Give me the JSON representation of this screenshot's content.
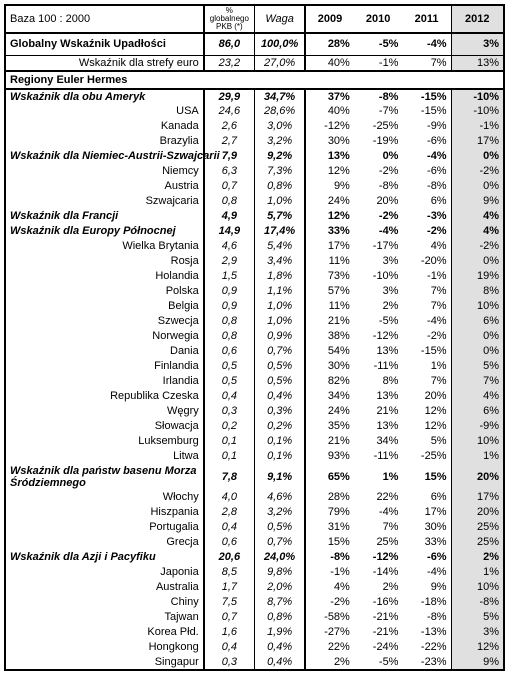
{
  "header": {
    "base": "Baza 100 : 2000",
    "pkb_top": "%",
    "pkb_mid": "globalnego",
    "pkb_bot": "PKB (*)",
    "waga": "Waga",
    "y2009": "2009",
    "y2010": "2010",
    "y2011": "2011",
    "y2012": "2012"
  },
  "global": {
    "label": "Globalny Wskaźnik Upadłości",
    "pkb": "86,0",
    "waga": "100,0%",
    "y2009": "28%",
    "y2010": "-5%",
    "y2011": "-4%",
    "y2012": "3%"
  },
  "euro": {
    "label": "Wskaźnik dla strefy euro",
    "pkb": "23,2",
    "waga": "27,0%",
    "y2009": "40%",
    "y2010": "-1%",
    "y2011": "7%",
    "y2012": "13%"
  },
  "regions_title": "Regiony Euler Hermes",
  "groups": [
    {
      "label": "Wskaźnik dla obu Ameryk",
      "pkb": "29,9",
      "waga": "34,7%",
      "y2009": "37%",
      "y2010": "-8%",
      "y2011": "-15%",
      "y2012": "-10%",
      "rows": [
        {
          "label": "USA",
          "pkb": "24,6",
          "waga": "28,6%",
          "y2009": "40%",
          "y2010": "-7%",
          "y2011": "-15%",
          "y2012": "-10%"
        },
        {
          "label": "Kanada",
          "pkb": "2,6",
          "waga": "3,0%",
          "y2009": "-12%",
          "y2010": "-25%",
          "y2011": "-9%",
          "y2012": "-1%"
        },
        {
          "label": "Brazylia",
          "pkb": "2,7",
          "waga": "3,2%",
          "y2009": "30%",
          "y2010": "-19%",
          "y2011": "-6%",
          "y2012": "17%"
        }
      ]
    },
    {
      "label": "Wskaźnik dla Niemiec-Austrii-Szwajcarii",
      "pkb": "7,9",
      "waga": "9,2%",
      "y2009": "13%",
      "y2010": "0%",
      "y2011": "-4%",
      "y2012": "0%",
      "rows": [
        {
          "label": "Niemcy",
          "pkb": "6,3",
          "waga": "7,3%",
          "y2009": "12%",
          "y2010": "-2%",
          "y2011": "-6%",
          "y2012": "-2%"
        },
        {
          "label": "Austria",
          "pkb": "0,7",
          "waga": "0,8%",
          "y2009": "9%",
          "y2010": "-8%",
          "y2011": "-8%",
          "y2012": "0%"
        },
        {
          "label": "Szwajcaria",
          "pkb": "0,8",
          "waga": "1,0%",
          "y2009": "24%",
          "y2010": "20%",
          "y2011": "6%",
          "y2012": "9%"
        }
      ]
    },
    {
      "label": "Wskaźnik dla Francji",
      "pkb": "4,9",
      "waga": "5,7%",
      "y2009": "12%",
      "y2010": "-2%",
      "y2011": "-3%",
      "y2012": "4%",
      "rows": []
    },
    {
      "label": "Wskaźnik dla Europy Północnej",
      "pkb": "14,9",
      "waga": "17,4%",
      "y2009": "33%",
      "y2010": "-4%",
      "y2011": "-2%",
      "y2012": "4%",
      "rows": [
        {
          "label": "Wielka Brytania",
          "pkb": "4,6",
          "waga": "5,4%",
          "y2009": "17%",
          "y2010": "-17%",
          "y2011": "4%",
          "y2012": "-2%"
        },
        {
          "label": "Rosja",
          "pkb": "2,9",
          "waga": "3,4%",
          "y2009": "11%",
          "y2010": "3%",
          "y2011": "-20%",
          "y2012": "0%"
        },
        {
          "label": "Holandia",
          "pkb": "1,5",
          "waga": "1,8%",
          "y2009": "73%",
          "y2010": "-10%",
          "y2011": "-1%",
          "y2012": "19%"
        },
        {
          "label": "Polska",
          "pkb": "0,9",
          "waga": "1,1%",
          "y2009": "57%",
          "y2010": "3%",
          "y2011": "7%",
          "y2012": "8%"
        },
        {
          "label": "Belgia",
          "pkb": "0,9",
          "waga": "1,0%",
          "y2009": "11%",
          "y2010": "2%",
          "y2011": "7%",
          "y2012": "10%"
        },
        {
          "label": "Szwecja",
          "pkb": "0,8",
          "waga": "1,0%",
          "y2009": "21%",
          "y2010": "-5%",
          "y2011": "-4%",
          "y2012": "6%"
        },
        {
          "label": "Norwegia",
          "pkb": "0,8",
          "waga": "0,9%",
          "y2009": "38%",
          "y2010": "-12%",
          "y2011": "-2%",
          "y2012": "0%"
        },
        {
          "label": "Dania",
          "pkb": "0,6",
          "waga": "0,7%",
          "y2009": "54%",
          "y2010": "13%",
          "y2011": "-15%",
          "y2012": "0%"
        },
        {
          "label": "Finlandia",
          "pkb": "0,5",
          "waga": "0,5%",
          "y2009": "30%",
          "y2010": "-11%",
          "y2011": "1%",
          "y2012": "5%"
        },
        {
          "label": "Irlandia",
          "pkb": "0,5",
          "waga": "0,5%",
          "y2009": "82%",
          "y2010": "8%",
          "y2011": "7%",
          "y2012": "7%"
        },
        {
          "label": "Republika Czeska",
          "pkb": "0,4",
          "waga": "0,4%",
          "y2009": "34%",
          "y2010": "13%",
          "y2011": "20%",
          "y2012": "4%"
        },
        {
          "label": "Węgry",
          "pkb": "0,3",
          "waga": "0,3%",
          "y2009": "24%",
          "y2010": "21%",
          "y2011": "12%",
          "y2012": "6%"
        },
        {
          "label": "Słowacja",
          "pkb": "0,2",
          "waga": "0,2%",
          "y2009": "35%",
          "y2010": "13%",
          "y2011": "12%",
          "y2012": "-9%"
        },
        {
          "label": "Luksemburg",
          "pkb": "0,1",
          "waga": "0,1%",
          "y2009": "21%",
          "y2010": "34%",
          "y2011": "5%",
          "y2012": "10%"
        },
        {
          "label": "Litwa",
          "pkb": "0,1",
          "waga": "0,1%",
          "y2009": "93%",
          "y2010": "-11%",
          "y2011": "-25%",
          "y2012": "1%"
        }
      ]
    },
    {
      "label": "Wskaźnik dla państw basenu Morza Śródziemnego",
      "pkb": "7,8",
      "waga": "9,1%",
      "y2009": "65%",
      "y2010": "1%",
      "y2011": "15%",
      "y2012": "20%",
      "tall": true,
      "rows": [
        {
          "label": "Włochy",
          "pkb": "4,0",
          "waga": "4,6%",
          "y2009": "28%",
          "y2010": "22%",
          "y2011": "6%",
          "y2012": "17%"
        },
        {
          "label": "Hiszpania",
          "pkb": "2,8",
          "waga": "3,2%",
          "y2009": "79%",
          "y2010": "-4%",
          "y2011": "17%",
          "y2012": "20%"
        },
        {
          "label": "Portugalia",
          "pkb": "0,4",
          "waga": "0,5%",
          "y2009": "31%",
          "y2010": "7%",
          "y2011": "30%",
          "y2012": "25%"
        },
        {
          "label": "Grecja",
          "pkb": "0,6",
          "waga": "0,7%",
          "y2009": "15%",
          "y2010": "25%",
          "y2011": "33%",
          "y2012": "25%"
        }
      ]
    },
    {
      "label": "Wskaźnik dla Azji i Pacyfiku",
      "pkb": "20,6",
      "waga": "24,0%",
      "y2009": "-8%",
      "y2010": "-12%",
      "y2011": "-6%",
      "y2012": "2%",
      "rows": [
        {
          "label": "Japonia",
          "pkb": "8,5",
          "waga": "9,8%",
          "y2009": "-1%",
          "y2010": "-14%",
          "y2011": "-4%",
          "y2012": "1%"
        },
        {
          "label": "Australia",
          "pkb": "1,7",
          "waga": "2,0%",
          "y2009": "4%",
          "y2010": "2%",
          "y2011": "9%",
          "y2012": "10%"
        },
        {
          "label": "Chiny",
          "pkb": "7,5",
          "waga": "8,7%",
          "y2009": "-2%",
          "y2010": "-16%",
          "y2011": "-18%",
          "y2012": "-8%"
        },
        {
          "label": "Tajwan",
          "pkb": "0,7",
          "waga": "0,8%",
          "y2009": "-58%",
          "y2010": "-21%",
          "y2011": "-8%",
          "y2012": "5%"
        },
        {
          "label": "Korea Płd.",
          "pkb": "1,6",
          "waga": "1,9%",
          "y2009": "-27%",
          "y2010": "-21%",
          "y2011": "-13%",
          "y2012": "3%"
        },
        {
          "label": "Hongkong",
          "pkb": "0,4",
          "waga": "0,4%",
          "y2009": "22%",
          "y2010": "-24%",
          "y2011": "-22%",
          "y2012": "12%"
        },
        {
          "label": "Singapur",
          "pkb": "0,3",
          "waga": "0,4%",
          "y2009": "2%",
          "y2010": "-5%",
          "y2011": "-23%",
          "y2012": "9%"
        }
      ]
    }
  ]
}
